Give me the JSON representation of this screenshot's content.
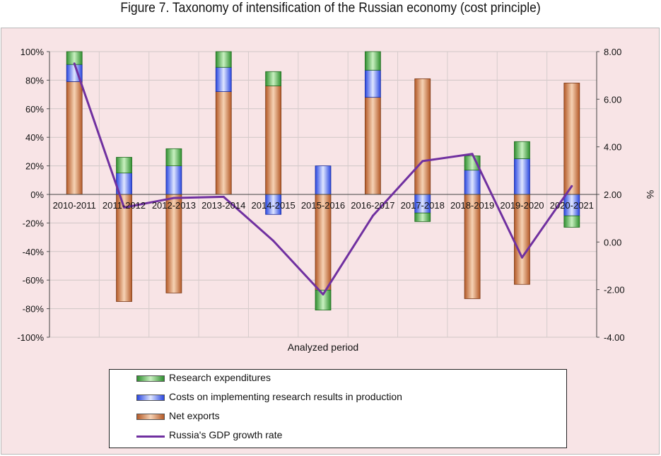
{
  "figure_title": "Figure 7. Taxonomy of intensification of the Russian economy (cost principle)",
  "colors": {
    "background": "#f8e4e6",
    "research": "#3fa63f",
    "implementation": "#3355ee",
    "net_exports": "#c86a34",
    "gdp_line": "#7030a0",
    "grid": "#c9c0c0"
  },
  "chart_data": {
    "type": "bar",
    "stacked": true,
    "categories": [
      "2010-2011",
      "2011-2012",
      "2012-2013",
      "2013-2014",
      "2014-2015",
      "2015-2016",
      "2016-2017",
      "2017-2018",
      "2018-2019",
      "2019-2020",
      "2020-2021"
    ],
    "series": [
      {
        "name": "Net exports",
        "axis": "left",
        "values": [
          79,
          -75,
          -69,
          72,
          76,
          -67,
          68,
          81,
          -73,
          -63,
          78
        ]
      },
      {
        "name": "Costs on implementing research results in production",
        "axis": "left",
        "values": [
          12,
          15,
          20,
          17,
          -14,
          20,
          19,
          -13,
          17,
          25,
          -15
        ]
      },
      {
        "name": "Research expenditures",
        "axis": "left",
        "values": [
          9,
          11,
          12,
          11,
          10,
          -14,
          13,
          -6,
          10,
          12,
          -8
        ]
      },
      {
        "name": "Russia's GDP growth rate",
        "axis": "right",
        "type": "line",
        "values": [
          7.5,
          1.45,
          1.85,
          1.9,
          0.05,
          -2.2,
          1.1,
          3.4,
          3.7,
          -0.65,
          2.35
        ]
      }
    ],
    "xlabel": "Analyzed period",
    "ylabel": "",
    "y2label": "%",
    "ylim": [
      -100,
      100
    ],
    "y2lim": [
      -4,
      8
    ],
    "yticks": [
      "100%",
      "80%",
      "60%",
      "40%",
      "20%",
      "0%",
      "-20%",
      "-40%",
      "-60%",
      "-80%",
      "-100%"
    ],
    "y2ticks": [
      "8.00",
      "6.00",
      "4.00",
      "2.00",
      "0.00",
      "-2.00",
      "-4.00"
    ],
    "grid": true,
    "legend_position": "bottom"
  },
  "legend": {
    "items": [
      {
        "label": "Research expenditures",
        "kind": "bar",
        "color": "#3fa63f"
      },
      {
        "label": "Costs on implementing research results in production",
        "kind": "bar",
        "color": "#3355ee"
      },
      {
        "label": "Net exports",
        "kind": "bar",
        "color": "#c86a34"
      },
      {
        "label": "Russia's GDP growth rate",
        "kind": "line",
        "color": "#7030a0"
      }
    ]
  }
}
